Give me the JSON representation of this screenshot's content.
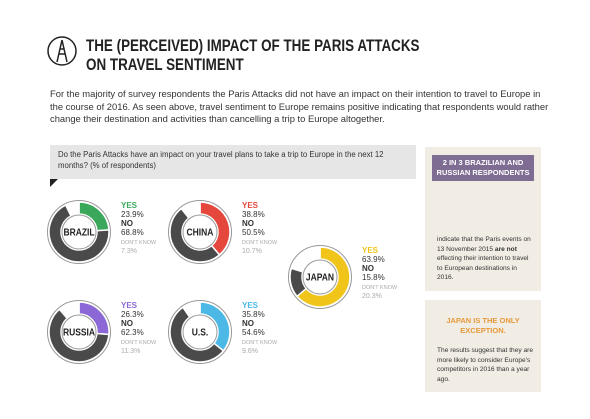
{
  "header": {
    "title": "THE (PERCEIVED) IMPACT OF THE PARIS ATTACKS ON TRAVEL SENTIMENT"
  },
  "intro": "For the majority of survey respondents the Paris Attacks did not have an impact on their intention to travel to Europe in the course of 2016. As seen above, travel sentiment to Europe remains positive indicating that respondents would rather change their destination and activities than cancelling a trip to Europe altogether.",
  "question": "Do the Paris Attacks have an impact on your travel plans to take a trip to Europe in the next 12 months? (% of respondents)",
  "chart_data": [
    {
      "type": "pie",
      "title": "BRAZIL",
      "categories": [
        "YES",
        "NO",
        "DON'T KNOW"
      ],
      "values": [
        23.9,
        68.8,
        7.3
      ],
      "value_labels": [
        "23.9%",
        "68.8%",
        "7.3%"
      ],
      "colors": [
        "#3aa85a",
        "#4a4a4a",
        "#ffffff"
      ]
    },
    {
      "type": "pie",
      "title": "CHINA",
      "categories": [
        "YES",
        "NO",
        "DON'T KNOW"
      ],
      "values": [
        38.8,
        50.5,
        10.7
      ],
      "value_labels": [
        "38.8%",
        "50.5%",
        "10.7%"
      ],
      "colors": [
        "#e5473c",
        "#4a4a4a",
        "#ffffff"
      ]
    },
    {
      "type": "pie",
      "title": "JAPAN",
      "categories": [
        "YES",
        "NO",
        "DON'T KNOW"
      ],
      "values": [
        63.9,
        15.8,
        20.3
      ],
      "value_labels": [
        "63.9%",
        "15.8%",
        "20.3%"
      ],
      "colors": [
        "#f0c419",
        "#4a4a4a",
        "#ffffff"
      ]
    },
    {
      "type": "pie",
      "title": "RUSSIA",
      "categories": [
        "YES",
        "NO",
        "DON'T KNOW"
      ],
      "values": [
        26.3,
        62.3,
        11.3
      ],
      "value_labels": [
        "26.3%",
        "62.3%",
        "11.3%"
      ],
      "colors": [
        "#8b68d6",
        "#4a4a4a",
        "#ffffff"
      ]
    },
    {
      "type": "pie",
      "title": "U.S.",
      "categories": [
        "YES",
        "NO",
        "DON'T KNOW"
      ],
      "values": [
        35.8,
        54.6,
        9.6
      ],
      "value_labels": [
        "35.8%",
        "54.6%",
        "9.6%"
      ],
      "colors": [
        "#4bb8e6",
        "#4a4a4a",
        "#ffffff"
      ]
    }
  ],
  "sidebar": {
    "callout_1": {
      "heading": "2 IN 3 BRAZILIAN AND RUSSIAN RESPONDENTS",
      "text": [
        "indicate that the Paris events on 13 November 2015 ",
        "are not",
        " effecting their intention to travel to European destinations in 2016."
      ]
    },
    "callout_2": {
      "heading": "JAPAN IS THE ONLY EXCEPTION.",
      "text": "The results suggest that they are more likely to consider Europe's competitors in 2016 than a year ago."
    }
  }
}
